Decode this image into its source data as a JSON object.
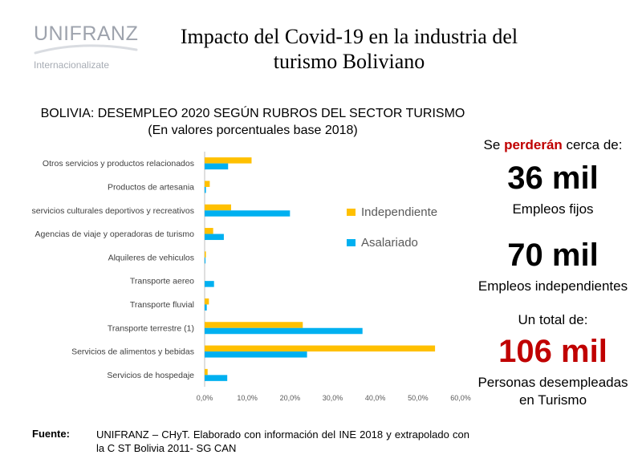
{
  "logo": {
    "name": "UNIFRANZ",
    "tagline": "Internacionalizate"
  },
  "title": {
    "line1": "Impacto del Covid-19 en la industria del",
    "line2": "turismo Boliviano"
  },
  "chart_data": {
    "type": "bar",
    "orientation": "horizontal",
    "title": "BOLIVIA: DESEMPLEO 2020 SEGÚN RUBROS DEL SECTOR TURISMO",
    "subtitle": "(En valores porcentuales base 2018)",
    "categories": [
      "Otros servicios y productos relacionados",
      "Productos de artesania",
      "servicios culturales deportivos y recreativos",
      "Agencias de viaje y operadoras de turismo",
      "Alquileres de vehiculos",
      "Transporte aereo",
      "Transporte fluvial",
      "Transporte terrestre (1)",
      "Servicios de alimentos y bebidas",
      "Servicios de hospedaje"
    ],
    "series": [
      {
        "name": "Independiente",
        "color": "#ffc000",
        "values": [
          11.0,
          1.2,
          6.2,
          2.0,
          0.3,
          0.0,
          1.0,
          23.0,
          54.0,
          0.7
        ]
      },
      {
        "name": "Asalariado",
        "color": "#00b0f0",
        "values": [
          5.5,
          0.3,
          20.0,
          4.5,
          0.2,
          2.2,
          0.5,
          37.0,
          24.0,
          5.3
        ]
      }
    ],
    "xlim": [
      0,
      60
    ],
    "xticks": [
      "0,0%",
      "10,0%",
      "20,0%",
      "30,0%",
      "40,0%",
      "50,0%",
      "60,0%"
    ],
    "legend_position": "right"
  },
  "stats": {
    "intro_prefix": "Se ",
    "intro_highlight": "perderán",
    "intro_suffix": " cerca de:",
    "fixed_value": "36 mil",
    "fixed_label": "Empleos fijos",
    "independent_value": "70 mil",
    "independent_label": "Empleos independientes",
    "total_intro": "Un total de:",
    "total_value": "106 mil",
    "total_label_line1": "Personas desempleadas",
    "total_label_line2": "en Turismo"
  },
  "source": {
    "label": "Fuente",
    "text": "UNIFRANZ – CHyT. Elaborado con información del INE 2018 y extrapolado con la C ST Bolivia 2011- SG CAN"
  }
}
